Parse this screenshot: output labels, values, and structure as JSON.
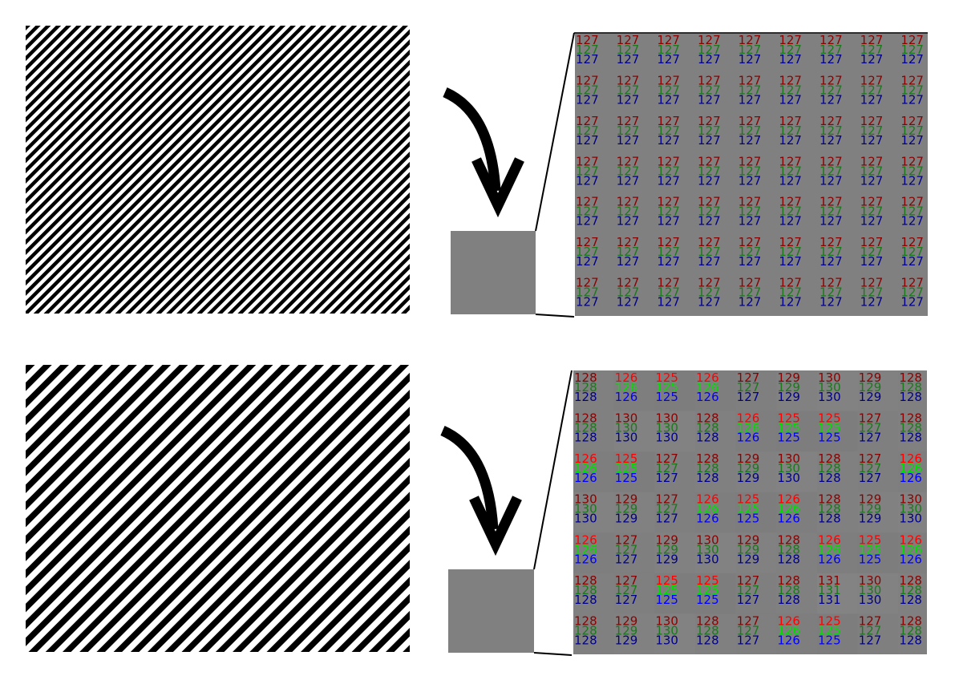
{
  "colors": {
    "background": "#ffffff",
    "stripe_dark": "#000000",
    "stripe_light": "#ffffff",
    "gray_patch": "#808080",
    "arrow": "#000000",
    "channel_dark": {
      "r": "#8b0000",
      "g": "#1a7a1a",
      "b": "#00008b"
    },
    "channel_bright": {
      "r": "#ff0000",
      "g": "#00e000",
      "b": "#0000ff"
    }
  },
  "panels": [
    {
      "name": "fine-stripes",
      "stripe_density": "fine",
      "pixel_grid": [
        [
          127,
          127,
          127,
          127,
          127,
          127,
          127,
          127,
          127
        ],
        [
          127,
          127,
          127,
          127,
          127,
          127,
          127,
          127,
          127
        ],
        [
          127,
          127,
          127,
          127,
          127,
          127,
          127,
          127,
          127
        ],
        [
          127,
          127,
          127,
          127,
          127,
          127,
          127,
          127,
          127
        ],
        [
          127,
          127,
          127,
          127,
          127,
          127,
          127,
          127,
          127
        ],
        [
          127,
          127,
          127,
          127,
          127,
          127,
          127,
          127,
          127
        ],
        [
          127,
          127,
          127,
          127,
          127,
          127,
          127,
          127,
          127
        ]
      ]
    },
    {
      "name": "coarse-stripes",
      "stripe_density": "coarse",
      "pixel_grid": [
        [
          128,
          126,
          125,
          126,
          127,
          129,
          130,
          129,
          128
        ],
        [
          128,
          130,
          130,
          128,
          126,
          125,
          125,
          127,
          128
        ],
        [
          126,
          125,
          127,
          128,
          129,
          130,
          128,
          127,
          126
        ],
        [
          130,
          129,
          127,
          126,
          125,
          126,
          128,
          129,
          130
        ],
        [
          126,
          127,
          129,
          130,
          129,
          128,
          126,
          125,
          126
        ],
        [
          128,
          127,
          125,
          125,
          127,
          128,
          131,
          130,
          128
        ],
        [
          128,
          129,
          130,
          128,
          127,
          126,
          125,
          127,
          128
        ]
      ]
    }
  ]
}
